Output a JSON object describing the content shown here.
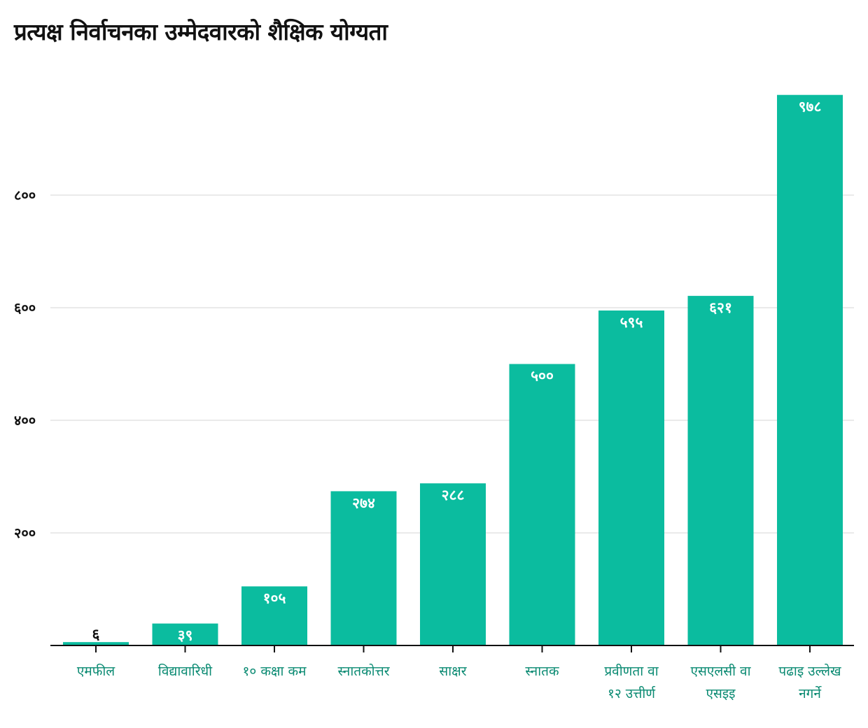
{
  "chart_data": {
    "type": "bar",
    "title": "प्रत्यक्ष निर्वाचनका उम्मेदवारको शैक्षिक योग्यता",
    "xlabel": "",
    "ylabel": "",
    "ylim": [
      0,
      978
    ],
    "grid": true,
    "categories": [
      [
        "एमफील"
      ],
      [
        "विद्यावारिधी"
      ],
      [
        "१० कक्षा कम"
      ],
      [
        "स्नातकोत्तर"
      ],
      [
        "साक्षर"
      ],
      [
        "स्नातक"
      ],
      [
        "प्रवीणता वा",
        "१२ उत्तीर्ण"
      ],
      [
        "एसएलसी वा",
        "एसइइ"
      ],
      [
        "पढाइ उल्लेख",
        "नगर्ने"
      ]
    ],
    "values": [
      6,
      39,
      105,
      274,
      288,
      500,
      595,
      621,
      978
    ],
    "value_labels": [
      "६",
      "३९",
      "१०५",
      "२७४",
      "२८८",
      "५००",
      "५९५",
      "६२१",
      "९७८"
    ],
    "y_ticks": [
      {
        "value": 200,
        "label": "२००"
      },
      {
        "value": 400,
        "label": "४००"
      },
      {
        "value": 600,
        "label": "६००"
      },
      {
        "value": 800,
        "label": "८००"
      }
    ],
    "colors": {
      "bar": "#0bbc9f",
      "category_text": "#0a8a72",
      "grid": "#e3e3e3",
      "axis": "#111111",
      "label_inside": "#ffffff",
      "label_outside": "#111111"
    }
  }
}
